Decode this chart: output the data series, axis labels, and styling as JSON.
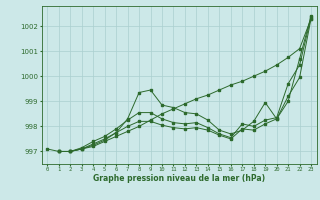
{
  "xlabel": "Graphe pression niveau de la mer (hPa)",
  "bg_color": "#cce8e8",
  "grid_color": "#aacfcf",
  "line_color": "#2d6a2d",
  "xlim": [
    -0.5,
    23.5
  ],
  "ylim": [
    996.5,
    1002.8
  ],
  "yticks": [
    997,
    998,
    999,
    1000,
    1001,
    1002
  ],
  "xticks": [
    0,
    1,
    2,
    3,
    4,
    5,
    6,
    7,
    8,
    9,
    10,
    11,
    12,
    13,
    14,
    15,
    16,
    17,
    18,
    19,
    20,
    21,
    22,
    23
  ],
  "lines": [
    {
      "x": [
        0,
        1,
        2,
        3,
        4,
        5,
        6,
        7,
        8,
        9,
        10,
        11,
        12,
        13,
        14,
        15,
        16,
        17,
        18,
        19,
        20,
        21,
        22,
        23
      ],
      "y": [
        997.1,
        997.0,
        997.0,
        997.1,
        997.2,
        997.4,
        997.6,
        997.8,
        998.0,
        998.25,
        998.5,
        998.7,
        998.9,
        999.1,
        999.25,
        999.45,
        999.65,
        999.8,
        1000.0,
        1000.2,
        1000.45,
        1000.75,
        1001.1,
        1002.3
      ]
    },
    {
      "x": [
        1,
        2,
        3,
        4,
        5,
        6,
        7,
        8,
        9,
        10,
        11,
        12,
        13,
        14,
        15,
        16,
        17,
        18,
        19,
        20,
        21,
        22,
        23
      ],
      "y": [
        997.0,
        997.0,
        997.1,
        997.25,
        997.45,
        997.75,
        998.3,
        999.35,
        999.45,
        998.85,
        998.75,
        998.55,
        998.5,
        998.25,
        997.85,
        997.7,
        997.85,
        998.2,
        998.95,
        998.3,
        999.0,
        1000.7,
        1002.4
      ]
    },
    {
      "x": [
        1,
        2,
        3,
        4,
        5,
        6,
        7,
        8,
        9,
        10,
        11,
        12,
        13,
        14,
        15,
        16,
        17,
        18,
        19,
        20,
        21,
        22,
        23
      ],
      "y": [
        997.0,
        997.0,
        997.15,
        997.4,
        997.6,
        997.9,
        998.25,
        998.55,
        998.55,
        998.3,
        998.15,
        998.1,
        998.15,
        997.95,
        997.7,
        997.55,
        998.1,
        998.0,
        998.25,
        998.35,
        999.7,
        1000.45,
        1002.35
      ]
    },
    {
      "x": [
        1,
        2,
        3,
        4,
        5,
        6,
        7,
        8,
        9,
        10,
        11,
        12,
        13,
        14,
        15,
        16,
        17,
        18,
        19,
        20,
        21,
        22,
        23
      ],
      "y": [
        997.0,
        997.0,
        997.1,
        997.3,
        997.5,
        997.75,
        998.0,
        998.2,
        998.2,
        998.05,
        997.95,
        997.9,
        997.95,
        997.85,
        997.65,
        997.5,
        997.9,
        997.85,
        998.1,
        998.3,
        999.2,
        999.95,
        1002.3
      ]
    }
  ]
}
